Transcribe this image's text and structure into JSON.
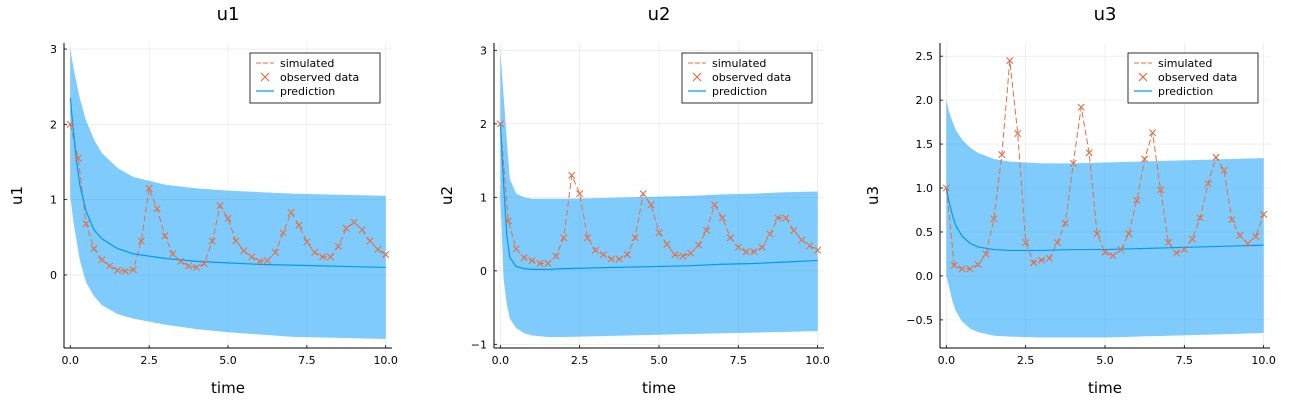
{
  "chart_data": [
    {
      "type": "line",
      "title": "u1",
      "xlabel": "time",
      "ylabel": "u1",
      "xlim": [
        -0.2,
        10.2
      ],
      "ylim": [
        -0.97,
        3.08
      ],
      "xticks": [
        0,
        2.5,
        5,
        7.5,
        10
      ],
      "xtick_labels": [
        "0.0",
        "2.5",
        "5.0",
        "7.5",
        "10.0"
      ],
      "yticks": [
        0,
        1,
        2,
        3
      ],
      "ytick_labels": [
        "0",
        "1",
        "2",
        "3"
      ],
      "grid": true,
      "legend_position": "top-right",
      "legend": [
        {
          "label": "simulated",
          "kind": "dashed-line",
          "color": "#e26f46"
        },
        {
          "label": "observed data",
          "kind": "x-marker",
          "color": "#e26f46"
        },
        {
          "label": "prediction",
          "kind": "line",
          "color": "#009af9"
        }
      ],
      "series": [
        {
          "name": "simulated",
          "color": "#e26f46",
          "x": [
            0,
            0.25,
            0.5,
            0.75,
            1.0,
            1.25,
            1.5,
            1.75,
            2.0,
            2.25,
            2.5,
            2.75,
            3.0,
            3.25,
            3.5,
            3.75,
            4.0,
            4.25,
            4.5,
            4.75,
            5.0,
            5.25,
            5.5,
            5.75,
            6.0,
            6.25,
            6.5,
            6.75,
            7.0,
            7.25,
            7.5,
            7.75,
            8.0,
            8.25,
            8.5,
            8.75,
            9.0,
            9.25,
            9.5,
            9.75,
            10.0
          ],
          "y": [
            2.0,
            1.55,
            0.68,
            0.35,
            0.2,
            0.12,
            0.06,
            0.05,
            0.07,
            0.45,
            1.15,
            0.88,
            0.52,
            0.28,
            0.18,
            0.12,
            0.1,
            0.15,
            0.45,
            0.92,
            0.75,
            0.45,
            0.32,
            0.24,
            0.18,
            0.19,
            0.3,
            0.56,
            0.83,
            0.66,
            0.44,
            0.3,
            0.24,
            0.24,
            0.38,
            0.62,
            0.7,
            0.6,
            0.45,
            0.34,
            0.27
          ]
        },
        {
          "name": "observed data",
          "color": "#e26f46",
          "x": [
            0,
            0.25,
            0.5,
            0.75,
            1.0,
            1.25,
            1.5,
            1.75,
            2.0,
            2.25,
            2.5,
            2.75,
            3.0,
            3.25,
            3.5,
            3.75,
            4.0,
            4.25,
            4.5,
            4.75,
            5.0,
            5.25,
            5.5,
            5.75,
            6.0,
            6.25,
            6.5,
            6.75,
            7.0,
            7.25,
            7.5,
            7.75,
            8.0,
            8.25,
            8.5,
            8.75,
            9.0,
            9.25,
            9.5,
            9.75,
            10.0
          ],
          "y": [
            2.0,
            1.55,
            0.68,
            0.35,
            0.2,
            0.12,
            0.06,
            0.05,
            0.07,
            0.45,
            1.15,
            0.88,
            0.52,
            0.28,
            0.18,
            0.12,
            0.1,
            0.15,
            0.45,
            0.92,
            0.75,
            0.45,
            0.32,
            0.24,
            0.18,
            0.19,
            0.3,
            0.56,
            0.83,
            0.66,
            0.44,
            0.3,
            0.24,
            0.24,
            0.38,
            0.62,
            0.7,
            0.6,
            0.45,
            0.34,
            0.27
          ]
        },
        {
          "name": "prediction",
          "color": "#009af9",
          "x": [
            0,
            0.1,
            0.2,
            0.3,
            0.5,
            0.75,
            1.0,
            1.5,
            2.0,
            3.0,
            4.0,
            5.0,
            6.0,
            7.0,
            8.0,
            9.0,
            10.0
          ],
          "y": [
            2.35,
            1.9,
            1.5,
            1.2,
            0.85,
            0.6,
            0.48,
            0.35,
            0.28,
            0.22,
            0.18,
            0.16,
            0.14,
            0.13,
            0.12,
            0.11,
            0.1
          ],
          "band_upper": [
            3.0,
            2.75,
            2.55,
            2.35,
            2.05,
            1.8,
            1.62,
            1.42,
            1.3,
            1.2,
            1.15,
            1.12,
            1.1,
            1.08,
            1.07,
            1.06,
            1.05
          ],
          "band_lower": [
            1.05,
            0.7,
            0.45,
            0.2,
            -0.1,
            -0.28,
            -0.4,
            -0.52,
            -0.58,
            -0.66,
            -0.72,
            -0.76,
            -0.79,
            -0.82,
            -0.83,
            -0.84,
            -0.85
          ]
        }
      ]
    },
    {
      "type": "line",
      "title": "u2",
      "xlabel": "time",
      "ylabel": "u2",
      "xlim": [
        -0.2,
        10.2
      ],
      "ylim": [
        -1.05,
        3.1
      ],
      "xticks": [
        0,
        2.5,
        5,
        7.5,
        10
      ],
      "xtick_labels": [
        "0.0",
        "2.5",
        "5.0",
        "7.5",
        "10.0"
      ],
      "yticks": [
        -1,
        0,
        1,
        2,
        3
      ],
      "ytick_labels": [
        "−1",
        "0",
        "1",
        "2",
        "3"
      ],
      "grid": true,
      "legend_position": "top-right",
      "legend": [
        {
          "label": "simulated",
          "kind": "dashed-line",
          "color": "#e26f46"
        },
        {
          "label": "observed data",
          "kind": "x-marker",
          "color": "#e26f46"
        },
        {
          "label": "prediction",
          "kind": "line",
          "color": "#009af9"
        }
      ],
      "series": [
        {
          "name": "simulated",
          "color": "#e26f46",
          "x": [
            0,
            0.25,
            0.5,
            0.75,
            1.0,
            1.25,
            1.5,
            1.75,
            2.0,
            2.25,
            2.5,
            2.75,
            3.0,
            3.25,
            3.5,
            3.75,
            4.0,
            4.25,
            4.5,
            4.75,
            5.0,
            5.25,
            5.5,
            5.75,
            6.0,
            6.25,
            6.5,
            6.75,
            7.0,
            7.25,
            7.5,
            7.75,
            8.0,
            8.25,
            8.5,
            8.75,
            9.0,
            9.25,
            9.5,
            9.75,
            10.0
          ],
          "y": [
            2.0,
            0.68,
            0.3,
            0.18,
            0.14,
            0.1,
            0.1,
            0.2,
            0.45,
            1.3,
            1.05,
            0.45,
            0.28,
            0.22,
            0.16,
            0.16,
            0.22,
            0.45,
            1.05,
            0.9,
            0.52,
            0.36,
            0.22,
            0.2,
            0.24,
            0.35,
            0.55,
            0.9,
            0.72,
            0.45,
            0.32,
            0.26,
            0.26,
            0.32,
            0.5,
            0.72,
            0.72,
            0.55,
            0.42,
            0.34,
            0.28
          ]
        },
        {
          "name": "observed data",
          "color": "#e26f46",
          "x": [
            0,
            0.25,
            0.5,
            0.75,
            1.0,
            1.25,
            1.5,
            1.75,
            2.0,
            2.25,
            2.5,
            2.75,
            3.0,
            3.25,
            3.5,
            3.75,
            4.0,
            4.25,
            4.5,
            4.75,
            5.0,
            5.25,
            5.5,
            5.75,
            6.0,
            6.25,
            6.5,
            6.75,
            7.0,
            7.25,
            7.5,
            7.75,
            8.0,
            8.25,
            8.5,
            8.75,
            9.0,
            9.25,
            9.5,
            9.75,
            10.0
          ],
          "y": [
            2.0,
            0.68,
            0.3,
            0.18,
            0.14,
            0.1,
            0.1,
            0.2,
            0.45,
            1.3,
            1.05,
            0.45,
            0.28,
            0.22,
            0.16,
            0.16,
            0.22,
            0.45,
            1.05,
            0.9,
            0.52,
            0.36,
            0.22,
            0.2,
            0.24,
            0.35,
            0.55,
            0.9,
            0.72,
            0.45,
            0.32,
            0.26,
            0.26,
            0.32,
            0.5,
            0.72,
            0.72,
            0.55,
            0.42,
            0.34,
            0.28
          ]
        },
        {
          "name": "prediction",
          "color": "#009af9",
          "x": [
            0,
            0.1,
            0.2,
            0.3,
            0.5,
            0.75,
            1.0,
            1.5,
            2.0,
            3.0,
            4.0,
            5.0,
            6.0,
            7.0,
            8.0,
            9.0,
            10.0
          ],
          "y": [
            2.0,
            1.2,
            0.5,
            0.18,
            0.06,
            0.03,
            0.02,
            0.02,
            0.03,
            0.04,
            0.05,
            0.06,
            0.07,
            0.09,
            0.1,
            0.12,
            0.14
          ],
          "band_upper": [
            3.0,
            2.4,
            1.8,
            1.25,
            1.05,
            1.0,
            0.98,
            0.98,
            0.98,
            0.99,
            1.0,
            1.01,
            1.02,
            1.04,
            1.05,
            1.07,
            1.08
          ],
          "band_lower": [
            1.0,
            -0.1,
            -0.45,
            -0.65,
            -0.78,
            -0.85,
            -0.88,
            -0.9,
            -0.9,
            -0.89,
            -0.88,
            -0.87,
            -0.86,
            -0.85,
            -0.84,
            -0.83,
            -0.82
          ]
        }
      ]
    },
    {
      "type": "line",
      "title": "u3",
      "xlabel": "time",
      "ylabel": "u3",
      "xlim": [
        -0.2,
        10.2
      ],
      "ylim": [
        -0.82,
        2.65
      ],
      "xticks": [
        0,
        2.5,
        5,
        7.5,
        10
      ],
      "xtick_labels": [
        "0.0",
        "2.5",
        "5.0",
        "7.5",
        "10.0"
      ],
      "yticks": [
        -0.5,
        0,
        0.5,
        1,
        1.5,
        2,
        2.5
      ],
      "ytick_labels": [
        "−0.5",
        "0.0",
        "0.5",
        "1.0",
        "1.5",
        "2.0",
        "2.5"
      ],
      "grid": true,
      "legend_position": "top-right",
      "legend": [
        {
          "label": "simulated",
          "kind": "dashed-line",
          "color": "#e26f46"
        },
        {
          "label": "observed data",
          "kind": "x-marker",
          "color": "#e26f46"
        },
        {
          "label": "prediction",
          "kind": "line",
          "color": "#009af9"
        }
      ],
      "series": [
        {
          "name": "simulated",
          "color": "#e26f46",
          "x": [
            0,
            0.25,
            0.5,
            0.75,
            1.0,
            1.25,
            1.5,
            1.75,
            2.0,
            2.25,
            2.5,
            2.75,
            3.0,
            3.25,
            3.5,
            3.75,
            4.0,
            4.25,
            4.5,
            4.75,
            5.0,
            5.25,
            5.5,
            5.75,
            6.0,
            6.25,
            6.5,
            6.75,
            7.0,
            7.25,
            7.5,
            7.75,
            8.0,
            8.25,
            8.5,
            8.75,
            9.0,
            9.25,
            9.5,
            9.75,
            10.0
          ],
          "y": [
            1.0,
            0.12,
            0.08,
            0.08,
            0.13,
            0.25,
            0.65,
            1.38,
            2.45,
            1.62,
            0.38,
            0.15,
            0.18,
            0.2,
            0.38,
            0.6,
            1.28,
            1.92,
            1.4,
            0.48,
            0.27,
            0.23,
            0.3,
            0.48,
            0.86,
            1.33,
            1.63,
            0.98,
            0.38,
            0.26,
            0.3,
            0.42,
            0.66,
            1.05,
            1.35,
            1.2,
            0.64,
            0.46,
            0.37,
            0.45,
            0.7
          ]
        },
        {
          "name": "observed data",
          "color": "#e26f46",
          "x": [
            0,
            0.25,
            0.5,
            0.75,
            1.0,
            1.25,
            1.5,
            1.75,
            2.0,
            2.25,
            2.5,
            2.75,
            3.0,
            3.25,
            3.5,
            3.75,
            4.0,
            4.25,
            4.5,
            4.75,
            5.0,
            5.25,
            5.5,
            5.75,
            6.0,
            6.25,
            6.5,
            6.75,
            7.0,
            7.25,
            7.5,
            7.75,
            8.0,
            8.25,
            8.5,
            8.75,
            9.0,
            9.25,
            9.5,
            9.75,
            10.0
          ],
          "y": [
            1.0,
            0.12,
            0.08,
            0.08,
            0.13,
            0.25,
            0.65,
            1.38,
            2.45,
            1.62,
            0.38,
            0.15,
            0.18,
            0.2,
            0.38,
            0.6,
            1.28,
            1.92,
            1.4,
            0.48,
            0.27,
            0.23,
            0.3,
            0.48,
            0.86,
            1.33,
            1.63,
            0.98,
            0.38,
            0.26,
            0.3,
            0.42,
            0.66,
            1.05,
            1.35,
            1.2,
            0.64,
            0.46,
            0.37,
            0.45,
            0.7
          ]
        },
        {
          "name": "prediction",
          "color": "#009af9",
          "x": [
            0,
            0.1,
            0.2,
            0.3,
            0.5,
            0.75,
            1.0,
            1.5,
            2.0,
            3.0,
            4.0,
            5.0,
            6.0,
            7.0,
            8.0,
            9.0,
            10.0
          ],
          "y": [
            1.0,
            0.82,
            0.68,
            0.57,
            0.45,
            0.37,
            0.33,
            0.3,
            0.29,
            0.29,
            0.3,
            0.3,
            0.31,
            0.32,
            0.33,
            0.34,
            0.35
          ],
          "band_upper": [
            2.0,
            1.85,
            1.75,
            1.66,
            1.55,
            1.46,
            1.4,
            1.33,
            1.3,
            1.28,
            1.28,
            1.29,
            1.3,
            1.31,
            1.32,
            1.33,
            1.34
          ],
          "band_lower": [
            0.0,
            -0.15,
            -0.3,
            -0.4,
            -0.52,
            -0.6,
            -0.64,
            -0.68,
            -0.69,
            -0.7,
            -0.7,
            -0.7,
            -0.69,
            -0.68,
            -0.67,
            -0.66,
            -0.65
          ]
        }
      ]
    }
  ]
}
